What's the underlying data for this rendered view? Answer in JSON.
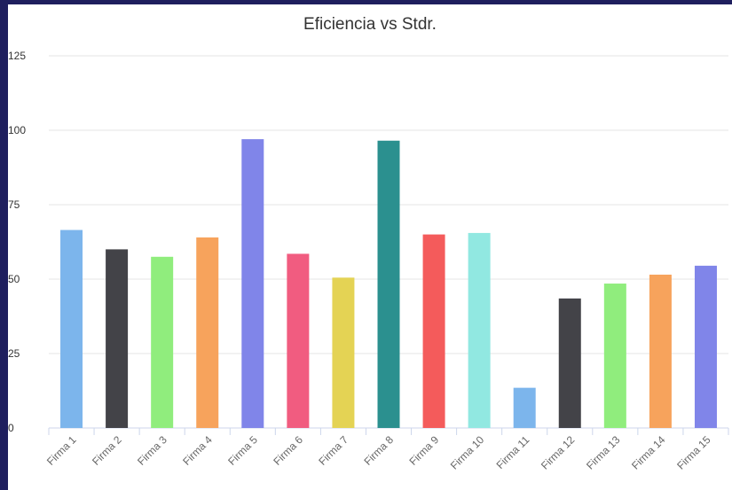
{
  "chart_data": {
    "type": "bar",
    "title": "Eficiencia vs Stdr.",
    "xlabel": "",
    "ylabel": "",
    "categories": [
      "Firma 1",
      "Firma 2",
      "Firma 3",
      "Firma 4",
      "Firma 5",
      "Firma 6",
      "Firma 7",
      "Firma 8",
      "Firma 9",
      "Firma 10",
      "Firma 11",
      "Firma 12",
      "Firma 13",
      "Firma 14",
      "Firma 15"
    ],
    "values": [
      66.5,
      60,
      57.5,
      64,
      97,
      58.5,
      50.5,
      96.5,
      65,
      65.5,
      13.5,
      43.5,
      48.5,
      51.5,
      54.5
    ],
    "colors": [
      "#7cb5ec",
      "#434348",
      "#90ed7d",
      "#f7a35c",
      "#8085e9",
      "#f15c80",
      "#e4d354",
      "#2b908f",
      "#f45b5b",
      "#91e8e1",
      "#7cb5ec",
      "#434348",
      "#90ed7d",
      "#f7a35c",
      "#8085e9"
    ],
    "ylim": [
      0,
      125
    ],
    "yticks": [
      0,
      25,
      50,
      75,
      100,
      125
    ],
    "grid": true,
    "legend": "none"
  }
}
